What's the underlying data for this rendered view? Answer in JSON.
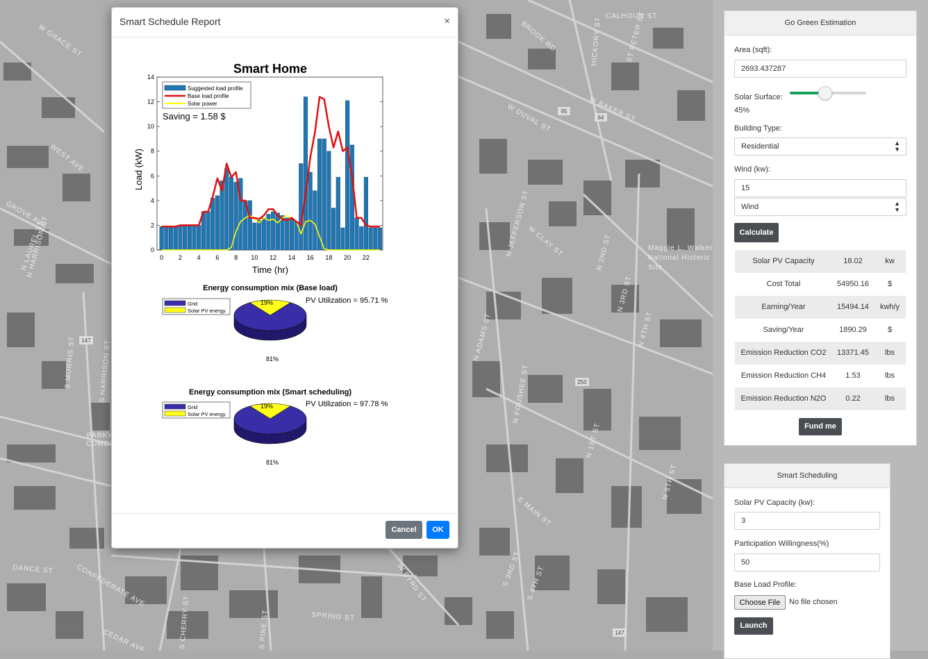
{
  "map": {
    "streets": [
      "W GRACE ST",
      "CALHOUN ST",
      "BROOK RD",
      "HICKORY ST",
      "ST PETER ST",
      "W DUVAL ST",
      "W BAKER ST",
      "WEST AVE",
      "GROVE AVE",
      "W CLAY ST",
      "N ADAMS ST",
      "N 1ST ST",
      "E MAIN ST",
      "W BYRD ST",
      "S 3RD ST",
      "S 4TH ST",
      "SPRING ST",
      "DANCE ST",
      "CONFEDERATE AVE",
      "CEDAR AVE",
      "S CHERRY ST",
      "S PINE ST",
      "S HARRISON ST",
      "N HARRISON ST",
      "S MORRIS ST",
      "PARKWOOD",
      "CUMBERLAND",
      "N LAUREL ST",
      "N 5TH ST",
      "N 4TH ST",
      "N 3RD ST",
      "N 2ND ST",
      "N FOUSHEE ST",
      "N JEFFERSON ST"
    ],
    "routes": [
      "95",
      "64",
      "147",
      "250",
      "147"
    ],
    "poi": [
      "Maggie L. Walker",
      "National Historic",
      "Site"
    ]
  },
  "go_green": {
    "title": "Go Green Estimation",
    "area_label": "Area (sqft):",
    "area_value": "2693.437287",
    "solar_label": "Solar Surface:",
    "solar_value": "45%",
    "solar_fraction": 0.45,
    "building_label": "Building Type:",
    "building_value": "Residential",
    "wind_label": "Wind (kw):",
    "wind_value": "15",
    "wind_type": "Wind",
    "calculate": "Calculate",
    "results": [
      {
        "name": "Solar PV Capacity",
        "value": "18.02",
        "unit": "kw"
      },
      {
        "name": "Cost Total",
        "value": "54950.16",
        "unit": "$"
      },
      {
        "name": "Earning/Year",
        "value": "15494.14",
        "unit": "kwh/y"
      },
      {
        "name": "Saving/Year",
        "value": "1890.29",
        "unit": "$"
      },
      {
        "name": "Emission Reduction CO2",
        "value": "13371.45",
        "unit": "lbs"
      },
      {
        "name": "Emission Reduction CH4",
        "value": "1.53",
        "unit": "lbs"
      },
      {
        "name": "Emission Reduction N2O",
        "value": "0.22",
        "unit": "lbs"
      }
    ],
    "fund": "Fund me",
    "accent": "#17a05a"
  },
  "smart_scheduling": {
    "title": "Smart Scheduling",
    "pv_label": "Solar PV Capacity (kw):",
    "pv_value": "3",
    "will_label": "Participation Willingness(%)",
    "will_value": "50",
    "base_label": "Base Load Profile:",
    "choose_file": "Choose File",
    "no_file": "No file chosen",
    "launch": "Launch"
  },
  "modal": {
    "title": "Smart Schedule Report",
    "close": "×",
    "cancel": "Cancel",
    "ok": "OK",
    "ok_color": "#007bff",
    "cancel_color": "#6c757d"
  },
  "chart_data": [
    {
      "type": "bar",
      "title": "Smart Home",
      "xlabel": "Time (hr)",
      "ylabel": "Load (kW)",
      "xlim": [
        -0.5,
        23.8
      ],
      "ylim": [
        0,
        14
      ],
      "xticks": [
        0,
        2,
        4,
        6,
        8,
        10,
        12,
        14,
        16,
        18,
        20,
        22
      ],
      "yticks": [
        0,
        2,
        4,
        6,
        8,
        10,
        12,
        14
      ],
      "annotation": "Saving = 1.58 $",
      "legend_position": "top-left",
      "x": [
        0,
        0.5,
        1,
        1.5,
        2,
        2.5,
        3,
        3.5,
        4,
        4.5,
        5,
        5.5,
        6,
        6.5,
        7,
        7.5,
        8,
        8.5,
        9,
        9.5,
        10,
        10.5,
        11,
        11.5,
        12,
        12.5,
        13,
        13.5,
        14,
        14.5,
        15,
        15.5,
        16,
        16.5,
        17,
        17.5,
        18,
        18.5,
        19,
        19.5,
        20,
        20.5,
        21,
        21.5,
        22,
        22.5,
        23,
        23.5
      ],
      "series": [
        {
          "name": "Suggested load profile",
          "type": "bar",
          "color": "#1f77b4",
          "values": [
            1.9,
            1.9,
            1.9,
            1.9,
            2.0,
            2.0,
            2.0,
            2.0,
            2.0,
            3.1,
            3.1,
            4.2,
            4.4,
            5.6,
            6.6,
            5.9,
            5.5,
            5.8,
            4.0,
            4.0,
            2.2,
            2.4,
            2.6,
            2.9,
            3.1,
            3.0,
            2.8,
            2.6,
            2.5,
            2.3,
            7.0,
            12.4,
            6.3,
            4.8,
            9.0,
            9.0,
            8.0,
            3.4,
            5.9,
            1.8,
            12.1,
            8.5,
            2.6,
            1.9,
            5.9,
            1.8,
            1.8,
            1.8
          ]
        },
        {
          "name": "Base load profile",
          "type": "line",
          "color": "#e01010",
          "values": [
            1.9,
            1.9,
            1.9,
            1.9,
            2.0,
            2.0,
            2.0,
            2.0,
            2.0,
            3.1,
            3.1,
            4.3,
            5.8,
            4.8,
            7.0,
            5.9,
            6.3,
            4.0,
            4.0,
            2.6,
            2.6,
            2.5,
            2.8,
            3.3,
            3.3,
            2.8,
            2.5,
            2.4,
            2.6,
            2.3,
            2.0,
            4.5,
            7.5,
            9.5,
            12.4,
            12.2,
            10.0,
            8.3,
            9.6,
            8.0,
            8.3,
            6.0,
            2.6,
            2.6,
            2.0,
            1.9,
            1.9,
            1.9
          ]
        },
        {
          "name": "Solar power",
          "type": "line",
          "color": "#ffff00",
          "values": [
            0,
            0,
            0,
            0,
            0,
            0,
            0,
            0,
            0,
            0,
            0,
            0,
            0,
            0,
            0,
            0.2,
            1.5,
            2.3,
            2.6,
            2.8,
            2.5,
            2.2,
            2.6,
            2.4,
            2.5,
            2.2,
            2.6,
            2.8,
            2.6,
            2.3,
            1.3,
            2.3,
            2.4,
            2.1,
            1.1,
            0.1,
            0,
            0,
            0,
            0,
            0,
            0,
            0,
            0,
            0,
            0,
            0,
            0
          ]
        }
      ]
    },
    {
      "type": "pie",
      "title": "Energy consumption mix (Base load)",
      "labels": [
        "Grid",
        "Solar PV energy"
      ],
      "values": [
        81,
        19
      ],
      "colors": [
        "#3a2ea8",
        "#ffff1a"
      ],
      "slice_labels": [
        "81%",
        "19%"
      ],
      "annotation": "PV Utilization = 95.71 %",
      "legend_position": "left"
    },
    {
      "type": "pie",
      "title": "Energy consumption mix (Smart scheduling)",
      "labels": [
        "Grid",
        "Solar PV energy"
      ],
      "values": [
        81,
        19
      ],
      "colors": [
        "#3a2ea8",
        "#ffff1a"
      ],
      "slice_labels": [
        "81%",
        "19%"
      ],
      "annotation": "PV Utilization = 97.78 %",
      "legend_position": "left"
    }
  ]
}
